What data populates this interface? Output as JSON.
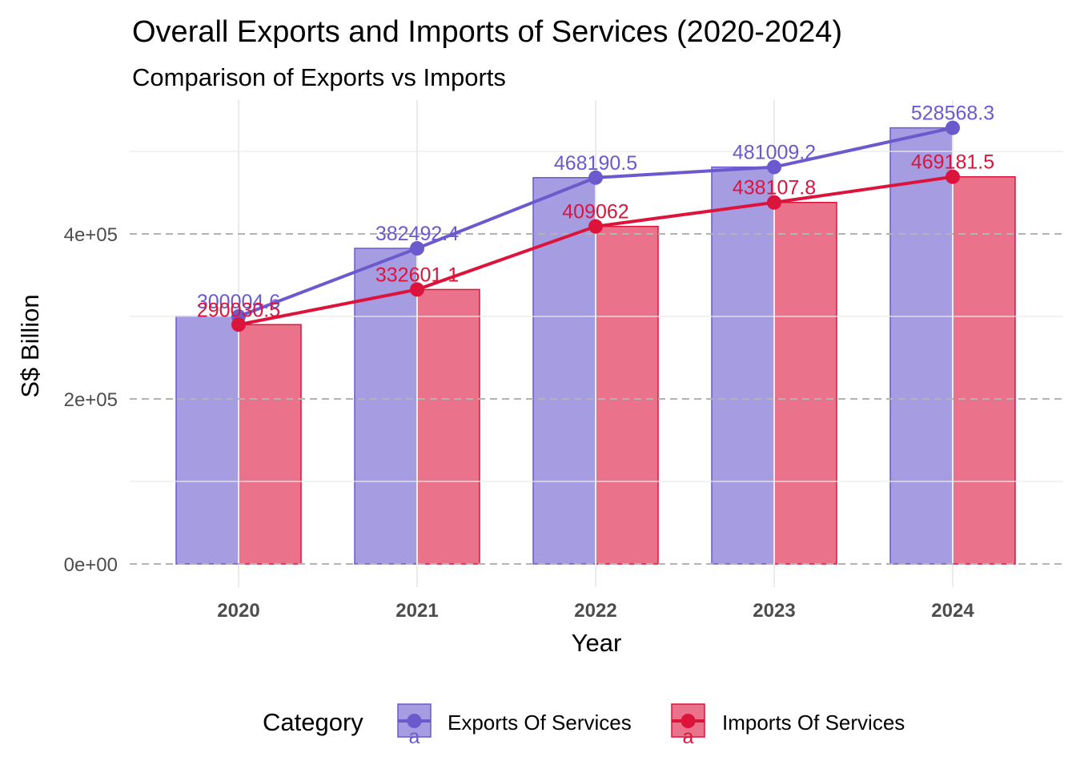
{
  "chart_data": {
    "type": "bar",
    "title": "Overall Exports and Imports of Services (2020-2024)",
    "subtitle": "Comparison of Exports vs Imports",
    "xlabel": "Year",
    "ylabel": "S$ Billion",
    "categories": [
      "2020",
      "2021",
      "2022",
      "2023",
      "2024"
    ],
    "series": [
      {
        "name": "Exports Of Services",
        "color": "#6A5ACD",
        "values": [
          300004.6,
          382492.4,
          468190.5,
          481009.2,
          528568.3
        ],
        "labels": [
          "300004.6",
          "382492.4",
          "468190.5",
          "481009.2",
          "528568.3"
        ]
      },
      {
        "name": "Imports Of Services",
        "color": "#DC143C",
        "values": [
          290030.5,
          332601.1,
          409062,
          438107.8,
          469181.5
        ],
        "labels": [
          "290030.5",
          "332601.1",
          "409062",
          "438107.8",
          "469181.5"
        ]
      }
    ],
    "ylim": [
      -20000,
      545000
    ],
    "y_ticks": [
      0,
      200000,
      400000
    ],
    "y_tick_labels": [
      "0e+00",
      "2e+05",
      "4e+05"
    ],
    "y_minor_ticks": [
      100000,
      300000,
      500000
    ],
    "major_gridline_style": "dashed",
    "overlay": "line-with-points",
    "legend": {
      "title": "Category",
      "position": "bottom",
      "key_glyph": "a"
    }
  }
}
